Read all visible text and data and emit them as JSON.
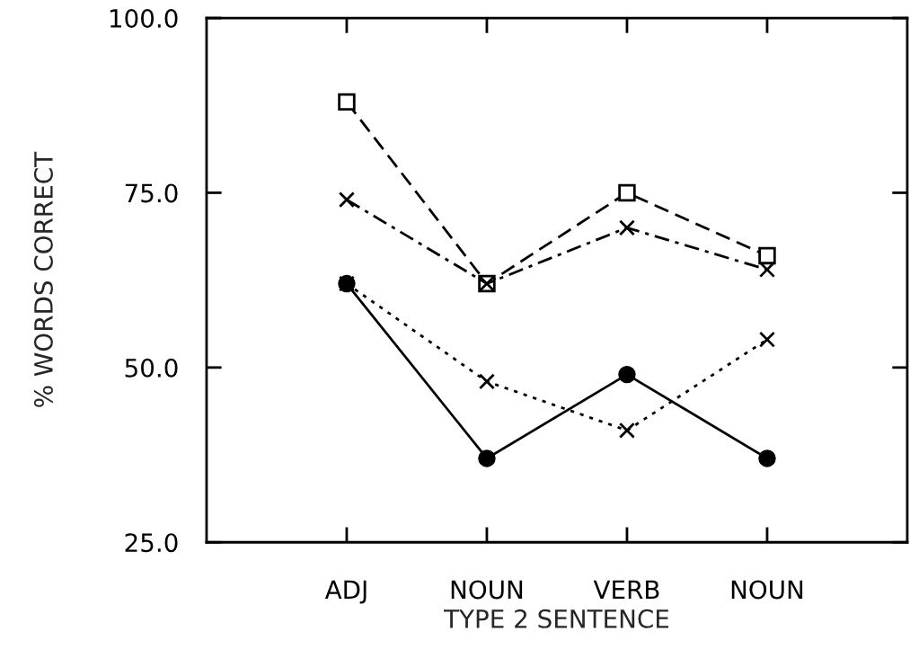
{
  "chart_data": {
    "type": "line",
    "xlabel": "TYPE 2 SENTENCE",
    "ylabel": "% WORDS CORRECT",
    "categories": [
      "ADJ",
      "NOUN",
      "VERB",
      "NOUN"
    ],
    "ylim": [
      25,
      100
    ],
    "yticks": [
      {
        "value": 25,
        "label": "25.0"
      },
      {
        "value": 50,
        "label": "50.0"
      },
      {
        "value": 75,
        "label": "75.0"
      },
      {
        "value": 100,
        "label": "100.0"
      }
    ],
    "grid": false,
    "legend": false,
    "series": [
      {
        "color": "#000000",
        "values": [
          88,
          62,
          75,
          66
        ],
        "marker": "square",
        "line_style": "dashed"
      },
      {
        "color": "#000000",
        "values": [
          74,
          62,
          70,
          64
        ],
        "marker": "cross",
        "line_style": "dashdot"
      },
      {
        "color": "#000000",
        "values": [
          62,
          48,
          41,
          54
        ],
        "marker": "cross",
        "line_style": "dotted"
      },
      {
        "color": "#000000",
        "values": [
          62,
          37,
          49,
          37
        ],
        "marker": "circle",
        "line_style": "solid"
      }
    ]
  }
}
